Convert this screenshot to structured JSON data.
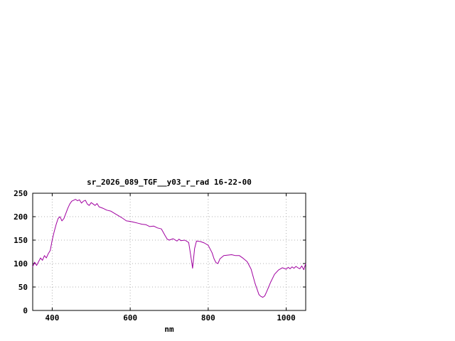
{
  "window": {
    "background": "#ffffff"
  },
  "chart_data": {
    "type": "line",
    "title": "sr_2026_089_TGF__y03_r_rad 16-22-00",
    "xlabel": "nm",
    "ylabel": "",
    "xlim": [
      350,
      1050
    ],
    "ylim": [
      0,
      250
    ],
    "x_ticks": [
      400,
      600,
      800,
      1000
    ],
    "y_ticks": [
      0,
      50,
      100,
      150,
      200,
      250
    ],
    "grid": true,
    "legend_position": "none",
    "line_color": "#a000a0",
    "grid_color": "#b0b0b0",
    "border_color": "#000000",
    "series": [
      {
        "name": "sr_2026_089_TGF__y03_r_rad",
        "x": [
          350,
          355,
          360,
          370,
          375,
          380,
          385,
          390,
          395,
          400,
          405,
          410,
          415,
          420,
          425,
          430,
          440,
          445,
          450,
          460,
          465,
          470,
          475,
          480,
          485,
          490,
          495,
          500,
          510,
          515,
          520,
          530,
          540,
          550,
          560,
          570,
          580,
          590,
          600,
          610,
          620,
          630,
          640,
          650,
          660,
          670,
          680,
          690,
          695,
          700,
          710,
          720,
          725,
          730,
          740,
          750,
          755,
          760,
          765,
          770,
          780,
          790,
          800,
          810,
          815,
          820,
          825,
          830,
          840,
          850,
          860,
          870,
          880,
          890,
          900,
          910,
          920,
          930,
          935,
          940,
          945,
          950,
          960,
          970,
          980,
          990,
          1000,
          1005,
          1010,
          1015,
          1020,
          1025,
          1030,
          1035,
          1040,
          1045,
          1050
        ],
        "y": [
          93,
          103,
          96,
          112,
          107,
          117,
          112,
          121,
          128,
          150,
          168,
          183,
          196,
          200,
          191,
          196,
          218,
          227,
          233,
          237,
          234,
          236,
          229,
          233,
          235,
          227,
          224,
          230,
          224,
          228,
          221,
          218,
          214,
          212,
          207,
          202,
          197,
          191,
          190,
          188,
          186,
          184,
          183,
          179,
          180,
          176,
          174,
          159,
          152,
          150,
          153,
          148,
          152,
          149,
          150,
          145,
          118,
          90,
          132,
          148,
          147,
          144,
          139,
          123,
          110,
          102,
          100,
          110,
          117,
          118,
          119,
          117,
          117,
          111,
          104,
          88,
          58,
          34,
          30,
          28,
          31,
          40,
          60,
          77,
          86,
          91,
          88,
          92,
          89,
          93,
          90,
          94,
          91,
          89,
          95,
          87,
          100
        ]
      }
    ]
  }
}
